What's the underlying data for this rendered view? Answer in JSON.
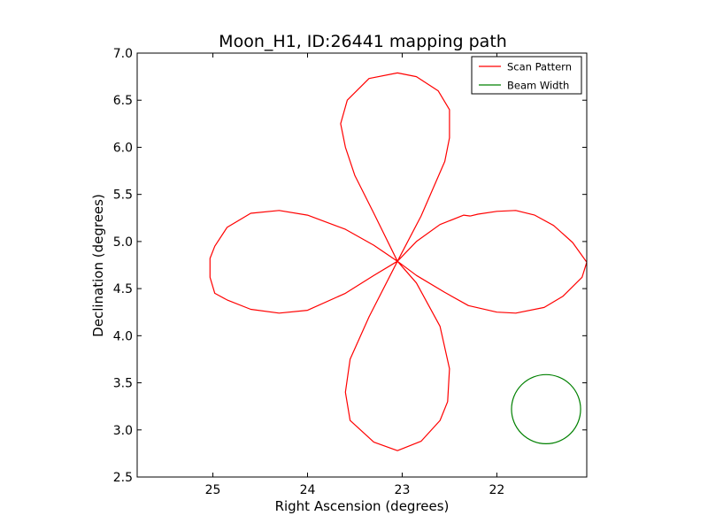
{
  "chart_data": {
    "type": "line",
    "title": "Moon_H1, ID:26441 mapping path",
    "xlabel": "Right Ascension (degrees)",
    "ylabel": "Declination (degrees)",
    "x_inverted": true,
    "xlim": [
      25.8,
      21.05
    ],
    "ylim": [
      2.5,
      7.0
    ],
    "x_ticks": [
      25,
      24,
      23,
      22
    ],
    "x_tick_labels": [
      "25",
      "24",
      "23",
      "22"
    ],
    "y_ticks": [
      2.5,
      3.0,
      3.5,
      4.0,
      4.5,
      5.0,
      5.5,
      6.0,
      6.5,
      7.0
    ],
    "y_tick_labels": [
      "2.5",
      "3.0",
      "3.5",
      "4.0",
      "4.5",
      "5.0",
      "5.5",
      "6.0",
      "6.5",
      "7.0"
    ],
    "grid": false,
    "legend_position": "top-right",
    "series": [
      {
        "name": "Scan Pattern",
        "color": "#ff0000",
        "x": [
          22.28,
          22.2,
          22.0,
          21.8,
          21.6,
          21.4,
          21.2,
          21.05,
          21.1,
          21.3,
          21.5,
          21.8,
          22.0,
          22.3,
          22.55,
          22.85,
          23.05,
          23.3,
          23.6,
          24.0,
          24.3,
          24.6,
          24.85,
          24.98,
          25.03,
          25.03,
          24.98,
          24.85,
          24.6,
          24.3,
          24.0,
          23.6,
          23.3,
          23.05,
          22.85,
          22.6,
          22.5,
          22.52,
          22.6,
          22.8,
          23.05,
          23.3,
          23.55,
          23.6,
          23.55,
          23.35,
          23.05,
          22.8,
          22.55,
          22.5,
          22.5,
          22.62,
          22.85,
          23.05,
          23.35,
          23.58,
          23.65,
          23.6,
          23.5,
          23.3,
          23.05,
          22.85,
          22.6,
          22.35,
          22.28
        ],
        "y": [
          5.27,
          5.29,
          5.32,
          5.33,
          5.28,
          5.17,
          4.99,
          4.78,
          4.62,
          4.42,
          4.3,
          4.24,
          4.25,
          4.32,
          4.46,
          4.64,
          4.79,
          4.96,
          5.13,
          5.28,
          5.33,
          5.3,
          5.15,
          4.95,
          4.82,
          4.62,
          4.45,
          4.38,
          4.28,
          4.24,
          4.27,
          4.45,
          4.64,
          4.79,
          4.56,
          4.1,
          3.65,
          3.3,
          3.1,
          2.88,
          2.78,
          2.87,
          3.1,
          3.4,
          3.75,
          4.2,
          4.79,
          5.27,
          5.85,
          6.1,
          6.4,
          6.6,
          6.75,
          6.79,
          6.73,
          6.5,
          6.25,
          6.0,
          5.7,
          5.3,
          4.79,
          5.0,
          5.18,
          5.28,
          5.27
        ]
      },
      {
        "name": "Beam Width",
        "color": "#008000",
        "shape": "circle",
        "center_x": 21.48,
        "center_y": 3.22,
        "radius": 0.365
      }
    ]
  }
}
